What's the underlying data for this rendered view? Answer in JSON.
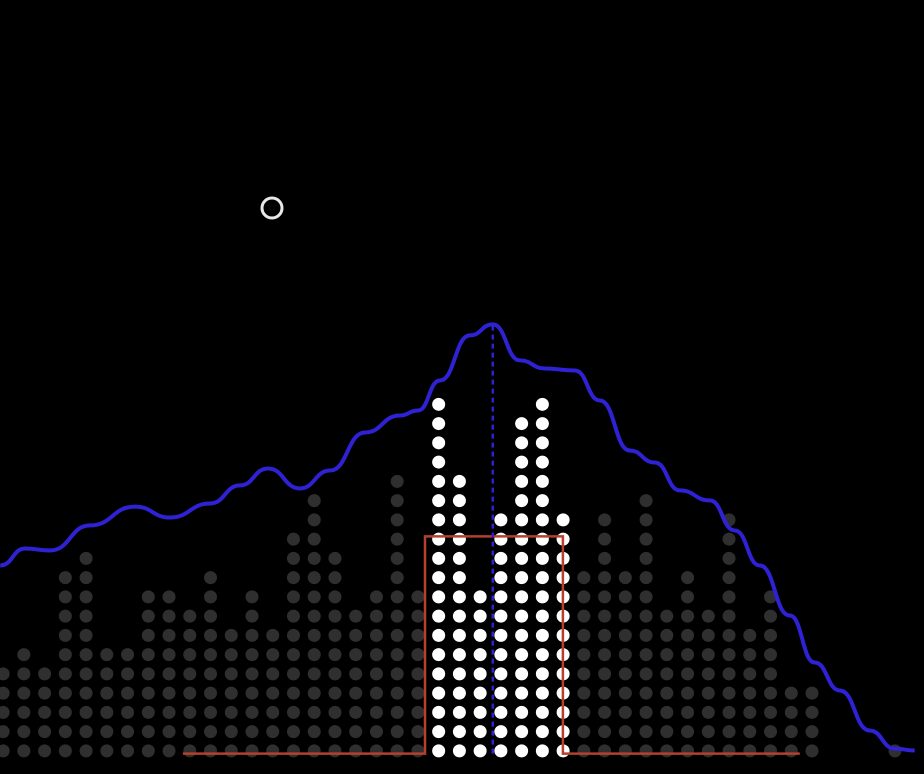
{
  "chart_data": {
    "type": "dotplot",
    "x": [
      0,
      1,
      2,
      3,
      4,
      5,
      6,
      7,
      8,
      9,
      10,
      11,
      12,
      13,
      14,
      15,
      16,
      17,
      18,
      19,
      20,
      21,
      22,
      23,
      24,
      25,
      26,
      27,
      28,
      29,
      30,
      31,
      32,
      33,
      34,
      35,
      36,
      37,
      38,
      39,
      40,
      41,
      42,
      43
    ],
    "values": [
      5,
      6,
      5,
      10,
      11,
      6,
      6,
      9,
      9,
      8,
      10,
      7,
      9,
      7,
      12,
      14,
      11,
      8,
      9,
      15,
      9,
      19,
      15,
      9,
      13,
      18,
      19,
      13,
      10,
      13,
      10,
      14,
      8,
      10,
      8,
      13,
      7,
      9,
      4,
      4,
      0,
      0,
      0,
      1
    ],
    "point_colors": [
      "#2f2f2f",
      "#2f2f2f",
      "#2f2f2f",
      "#2f2f2f",
      "#2f2f2f",
      "#2f2f2f",
      "#2f2f2f",
      "#2f2f2f",
      "#2f2f2f",
      "#2f2f2f",
      "#2f2f2f",
      "#2f2f2f",
      "#2f2f2f",
      "#2f2f2f",
      "#2f2f2f",
      "#2f2f2f",
      "#2f2f2f",
      "#2f2f2f",
      "#2f2f2f",
      "#2f2f2f",
      "#2f2f2f",
      "#ffffff",
      "#ffffff",
      "#ffffff",
      "#ffffff",
      "#ffffff",
      "#ffffff",
      "#ffffff",
      "#2f2f2f",
      "#2f2f2f",
      "#2f2f2f",
      "#2f2f2f",
      "#2f2f2f",
      "#2f2f2f",
      "#2f2f2f",
      "#2f2f2f",
      "#2f2f2f",
      "#2f2f2f",
      "#2f2f2f",
      "#2f2f2f",
      "#2f2f2f",
      "#2f2f2f",
      "#2f2f2f",
      "#2f2f2f"
    ],
    "xlim": [
      -0.15,
      44.4
    ],
    "ylim": [
      -0.7,
      39.5
    ],
    "curve": {
      "color": "#2f22d4",
      "x": [
        -0.14,
        1.06,
        2.27,
        4.19,
        6.36,
        8.05,
        9.98,
        11.42,
        12.77,
        14.31,
        15.76,
        17.45,
        19.13,
        20.0,
        21.06,
        22.51,
        23.61,
        24.92,
        26.12,
        27.57,
        28.77,
        30.22,
        31.42,
        32.63,
        34.07,
        35.28,
        36.48,
        37.93,
        39.13,
        40.34,
        41.78,
        42.99,
        43.95
      ],
      "values": [
        10.13,
        11.01,
        10.91,
        12.21,
        13.19,
        12.62,
        13.35,
        14.29,
        15.17,
        14.13,
        15.06,
        17.04,
        17.92,
        18.18,
        19.74,
        22.08,
        22.65,
        20.78,
        20.36,
        20.26,
        18.7,
        16.1,
        15.48,
        14.03,
        13.51,
        11.95,
        10.13,
        7.53,
        5.09,
        3.64,
        1.56,
        0.62,
        0.52
      ]
    },
    "window": {
      "color": "#b5402c",
      "x": [
        8.67,
        20.34,
        20.34,
        26.99,
        26.99,
        38.41
      ],
      "values": [
        0.36,
        0.36,
        11.64,
        11.64,
        0.36,
        0.36
      ]
    },
    "marker": {
      "color": "#2f22d4",
      "x": [
        23.61,
        23.61
      ],
      "values": [
        0.36,
        22.65
      ]
    }
  }
}
